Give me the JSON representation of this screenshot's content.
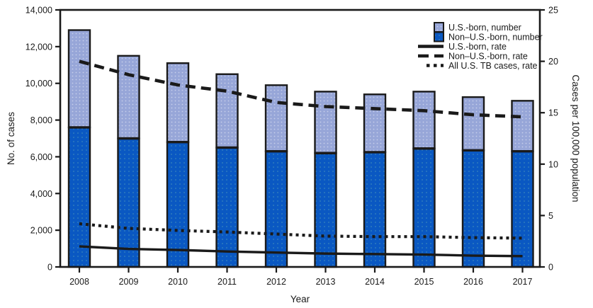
{
  "chart_data": {
    "type": "bar",
    "title": "",
    "xlabel": "Year",
    "ylabel_left": "No. of cases",
    "ylabel_right": "Cases per 100,000 population",
    "categories": [
      "2008",
      "2009",
      "2010",
      "2011",
      "2012",
      "2013",
      "2014",
      "2015",
      "2016",
      "2017"
    ],
    "stacked": true,
    "series": [
      {
        "name": "U.S.-born, number",
        "kind": "bar",
        "axis": "left",
        "stack_position": "top",
        "values": [
          5300,
          4500,
          4300,
          4000,
          3600,
          3350,
          3150,
          3100,
          2900,
          2750
        ]
      },
      {
        "name": "Non–U.S.-born, number",
        "kind": "bar",
        "axis": "left",
        "stack_position": "bottom",
        "values": [
          7600,
          7000,
          6800,
          6500,
          6300,
          6200,
          6250,
          6450,
          6350,
          6300
        ]
      },
      {
        "name": "U.S.-born, rate",
        "kind": "line-solid",
        "axis": "right",
        "values": [
          2.0,
          1.75,
          1.65,
          1.5,
          1.4,
          1.3,
          1.25,
          1.2,
          1.1,
          1.05
        ]
      },
      {
        "name": "Non–U.S.-born, rate",
        "kind": "line-dashed",
        "axis": "right",
        "values": [
          20.0,
          18.7,
          17.7,
          17.1,
          16.0,
          15.6,
          15.4,
          15.2,
          14.8,
          14.6
        ]
      },
      {
        "name": "All U.S. TB cases, rate",
        "kind": "line-dotted",
        "axis": "right",
        "values": [
          4.2,
          3.75,
          3.55,
          3.4,
          3.2,
          3.0,
          2.95,
          2.95,
          2.85,
          2.8
        ]
      }
    ],
    "ylim_left": [
      0,
      14000
    ],
    "yticks_left": [
      0,
      2000,
      4000,
      6000,
      8000,
      10000,
      12000,
      14000
    ],
    "ylim_right": [
      0,
      25
    ],
    "yticks_right": [
      0,
      5,
      10,
      15,
      20,
      25
    ],
    "grid": false,
    "legend_position": "top-right",
    "colors": {
      "us_born_bar": "#97a6d8",
      "non_us_born_bar": "#0a58c2",
      "line": "#1a1a1a",
      "axis": "#1a1a1a",
      "text": "#1a1a1a",
      "background": "#ffffff"
    }
  }
}
